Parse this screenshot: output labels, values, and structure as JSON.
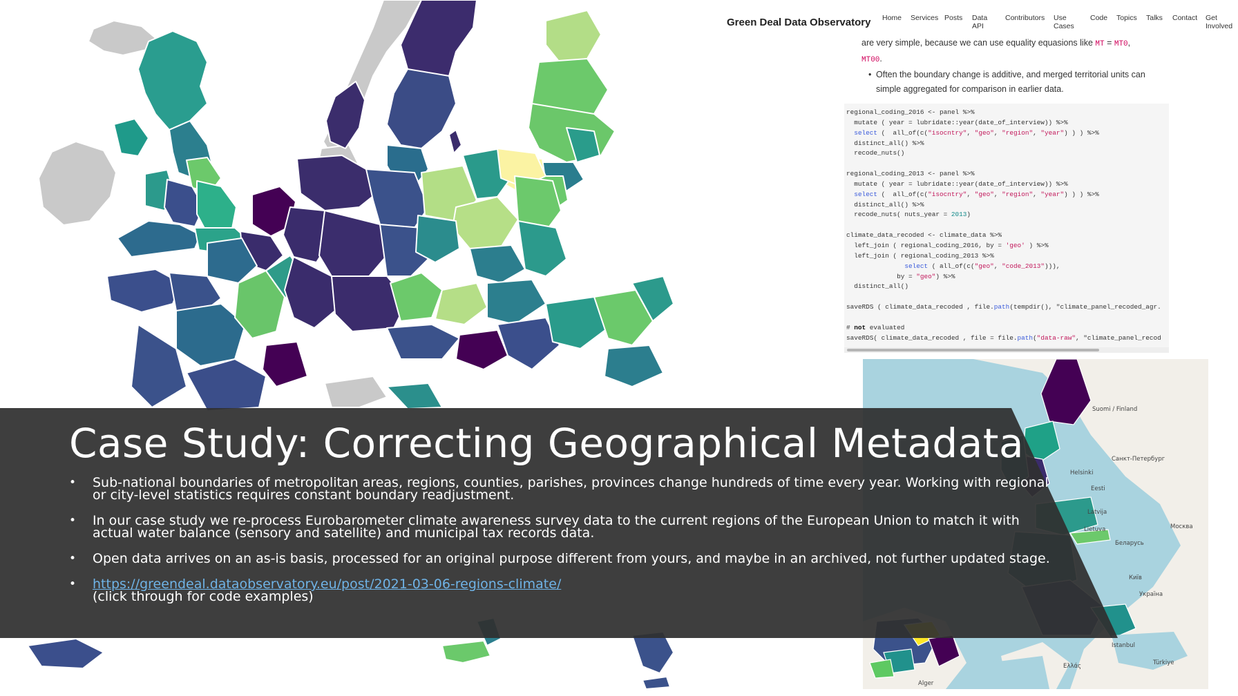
{
  "website": {
    "title": "Green Deal Data Observatory",
    "nav": [
      "Home",
      "Services",
      "Posts",
      "Data API",
      "Contributors",
      "Use Cases",
      "Code",
      "Topics",
      "Talks",
      "Contact",
      "Get Involved"
    ],
    "text": {
      "line1_start": "are very simple, because we can use equality equasions like ",
      "code_a": "MT",
      "eq": " = ",
      "code_b": "MT0",
      "comma": ",",
      "code_c": "MT00",
      "period": ".",
      "bullet2": "Often the boundary change is additive, and merged territorial units can simple aggregated for comparison in earlier data."
    },
    "code_lines": [
      "regional_coding_2016 <- panel %>%",
      "  mutate ( year = lubridate::year(date_of_interview)) %>%",
      "  select (  all_of(c(\"isocntry\", \"geo\", \"region\", \"year\") ) ) %>%",
      "  distinct_all() %>%",
      "  recode_nuts()",
      "",
      "regional_coding_2013 <- panel %>%",
      "  mutate ( year = lubridate::year(date_of_interview)) %>%",
      "  select (  all_of(c(\"isocntry\", \"geo\", \"region\", \"year\") ) ) %>%",
      "  distinct_all() %>%",
      "  recode_nuts( nuts_year = 2013)",
      "",
      "climate_data_recoded <- climate_data %>%",
      "  left_join ( regional_coding_2016, by = 'geo' ) %>%",
      "  left_join ( regional_coding_2013 %>%",
      "               select ( all_of(c(\"geo\", \"code_2013\"))),",
      "             by = \"geo\") %>%",
      "  distinct_all()",
      "",
      "saveRDS ( climate_data_recoded , file.path(tempdir(), \"climate_panel_recoded_agr.",
      "",
      "# not evaluated",
      "saveRDS( climate_data_recoded , file = file.path(\"data-raw\", \"climate_panel_recod"
    ]
  },
  "leaflet_labels": [
    "Suomi / Finland",
    "Санкт-Петербург",
    "Helsinki",
    "Eesti",
    "Москва",
    "Latvija",
    "Lietuva",
    "Беларусь",
    "Київ",
    "Україна",
    "Istanbul",
    "Türkiye",
    "Ελλάς",
    "Alger"
  ],
  "caption": {
    "title": "Case Study: Correcting Geographical Metadata",
    "bullets": [
      "Sub-national boundaries of metropolitan areas, regions, counties, parishes, provinces change hundreds of time every year.  Working with regional or city-level statistics requires constant boundary readjustment.",
      "In our case study we re-process Eurobarometer climate awareness survey data to the current regions of the European Union to match it with actual water balance (sensory and satellite) and municipal tax records data.",
      "Open data arrives on an as-is basis, processed for an original purpose different from yours, and maybe in an archived, not further updated stage."
    ],
    "link": "https://greendeal.dataobservatory.eu/post/2021-03-06-regions-climate/",
    "link_note": "(click through for code examples)"
  },
  "colors": {
    "viridis_dark": "#440154",
    "viridis_purple": "#3b2c6e",
    "viridis_blue": "#3b528b",
    "viridis_teal": "#21918c",
    "viridis_green": "#5ec962",
    "viridis_yellow": "#fde725",
    "banner": "#3a3a3a",
    "link": "#6fb3e6"
  }
}
